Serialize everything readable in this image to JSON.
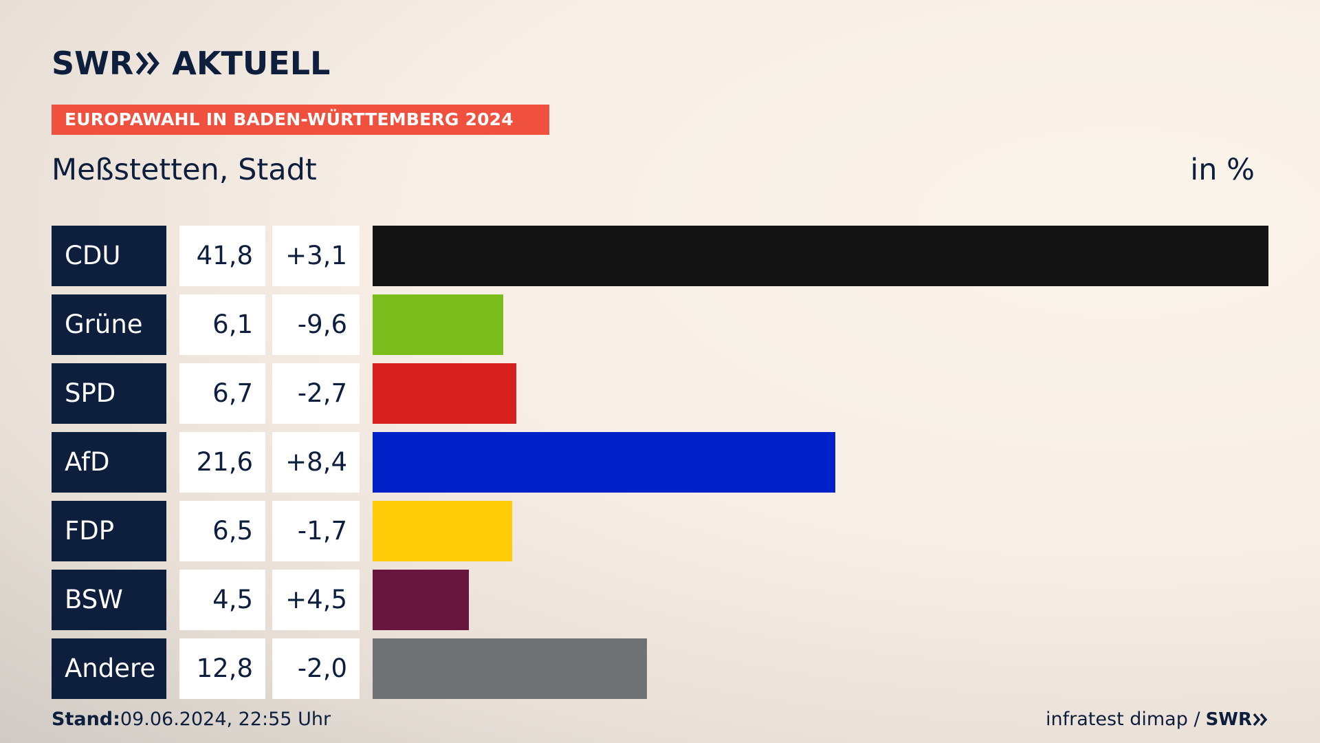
{
  "brand": {
    "logo_text": "SWR",
    "logo_suffix": "AKTUELL",
    "chevron_icon": "double-chevron-right-icon"
  },
  "banner": {
    "label": "EUROPAWAHL IN BADEN-WÜRTTEMBERG 2024"
  },
  "header": {
    "place": "Meßstetten, Stadt",
    "unit": "in %"
  },
  "chart_data": {
    "type": "bar",
    "orientation": "horizontal",
    "categories": [
      "CDU",
      "Grüne",
      "SPD",
      "AfD",
      "FDP",
      "BSW",
      "Andere"
    ],
    "values": [
      41.8,
      6.1,
      6.7,
      21.6,
      6.5,
      4.5,
      12.8
    ],
    "value_labels": [
      "41,8",
      "6,1",
      "6,7",
      "21,6",
      "6,5",
      "4,5",
      "12,8"
    ],
    "diff_labels": [
      "+3,1",
      "-9,6",
      "-2,7",
      "+8,4",
      "-1,7",
      "+4,5",
      "-2,0"
    ],
    "colors": [
      "#141414",
      "#7bbd1d",
      "#d8211f",
      "#0020c8",
      "#ffcc07",
      "#69163f",
      "#707172"
    ],
    "xlim": [
      0,
      41.8
    ]
  },
  "footer": {
    "stand_label": "Stand:",
    "stand_value": "09.06.2024, 22:55 Uhr",
    "source": "infratest dimap /",
    "source_brand": "SWR"
  }
}
